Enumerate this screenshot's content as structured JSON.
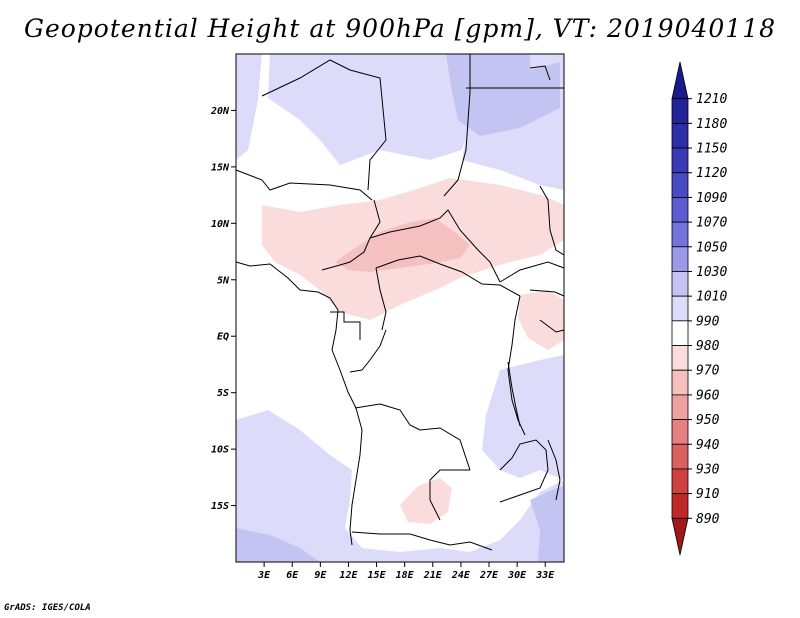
{
  "title": "Geopotential Height at 900hPa [gpm], VT: 2019040118",
  "credit": "GrADS: IGES/COLA",
  "map": {
    "lon_range": [
      0,
      35
    ],
    "lat_range": [
      -20,
      25
    ],
    "lat_ticks": [
      {
        "value": 20,
        "label": "20N"
      },
      {
        "value": 15,
        "label": "15N"
      },
      {
        "value": 10,
        "label": "10N"
      },
      {
        "value": 5,
        "label": "5N"
      },
      {
        "value": 0,
        "label": "EQ"
      },
      {
        "value": -5,
        "label": "5S"
      },
      {
        "value": -10,
        "label": "10S"
      },
      {
        "value": -15,
        "label": "15S"
      }
    ],
    "lon_ticks": [
      {
        "value": 3,
        "label": "3E"
      },
      {
        "value": 6,
        "label": "6E"
      },
      {
        "value": 9,
        "label": "9E"
      },
      {
        "value": 12,
        "label": "12E"
      },
      {
        "value": 15,
        "label": "15E"
      },
      {
        "value": 18,
        "label": "18E"
      },
      {
        "value": 21,
        "label": "21E"
      },
      {
        "value": 24,
        "label": "24E"
      },
      {
        "value": 27,
        "label": "27E"
      },
      {
        "value": 30,
        "label": "30E"
      },
      {
        "value": 33,
        "label": "33E"
      }
    ]
  },
  "colorbar": {
    "levels": [
      "1210",
      "1180",
      "1150",
      "1120",
      "1090",
      "1070",
      "1050",
      "1030",
      "1010",
      "990",
      "980",
      "970",
      "960",
      "950",
      "940",
      "930",
      "910",
      "890"
    ],
    "colors": [
      "#1a1a8c",
      "#24249a",
      "#2d2da8",
      "#3a3ab6",
      "#4a4ac4",
      "#5c5cd0",
      "#7474dc",
      "#9a9ae6",
      "#c4c4f2",
      "#dcdcfa",
      "#ffffff",
      "#fbdcdc",
      "#f5c0c0",
      "#efa0a0",
      "#e58080",
      "#db6060",
      "#cf4040",
      "#c02828",
      "#a01818"
    ]
  }
}
